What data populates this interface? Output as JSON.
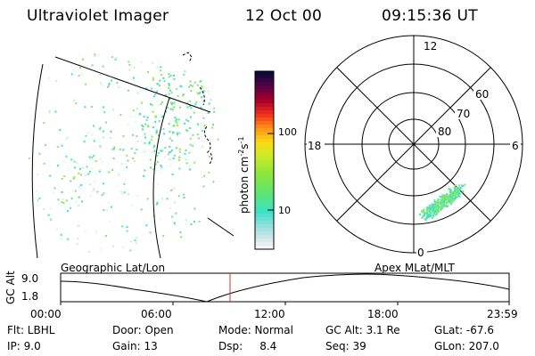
{
  "header": {
    "title": "Ultraviolet Imager",
    "date": "12 Oct 00",
    "time": "09:15:36 UT"
  },
  "colorbar": {
    "label": "photon cm",
    "label_exp1": "-2",
    "label_mid": "s",
    "label_exp2": "-1",
    "ticks": [
      "100",
      "10"
    ]
  },
  "polar_plot": {
    "mlt_labels": {
      "top": "12",
      "left": "18",
      "right": "6",
      "bottom": "0"
    },
    "lat_labels": [
      "60",
      "70",
      "80"
    ]
  },
  "maps": {
    "left_caption": "Geographic Lat/Lon",
    "right_caption": "Apex MLat/MLT"
  },
  "altitude_plot": {
    "ylabel": "GC Alt",
    "yticks": [
      "9.0",
      "1.8"
    ],
    "xticks": [
      "00:00",
      "06:00",
      "12:00",
      "18:00",
      "23:59"
    ]
  },
  "info": {
    "flt": "Flt: LBHL",
    "ip": "IP:  9.0",
    "door": "Door: Open",
    "gain": "Gain: 13",
    "mode": "Mode: Normal",
    "dsp": "Dsp:     8.4",
    "gcalt": "GC Alt: 3.1 Re",
    "seq": "Seq: 39",
    "glat": "GLat: -67.6",
    "glon": "GLon: 207.0"
  },
  "colors": {
    "aurora_low": "#6fe39a",
    "aurora_mid": "#38e3c6",
    "aurora_high": "#8fe65a",
    "marker": "#cc3333"
  }
}
